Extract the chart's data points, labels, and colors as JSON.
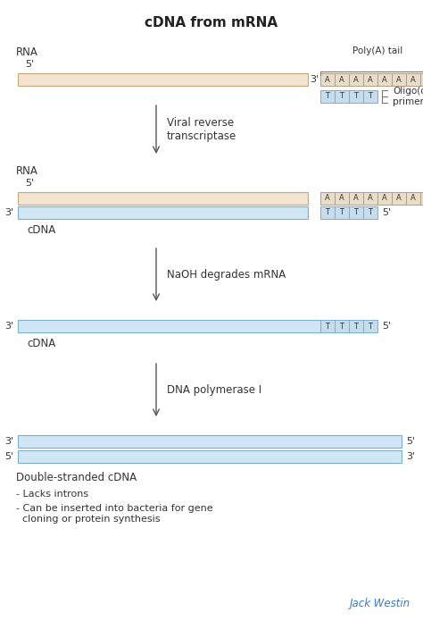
{
  "title": "cDNA from mRNA",
  "title_fontsize": 11,
  "background_color": "#ffffff",
  "rna_color": "#f2e4d0",
  "cdna_color": "#d0e6f5",
  "a_box_color": "#e8ddc8",
  "t_box_color": "#c5dded",
  "text_color": "#333333",
  "jack_westin_color": "#3a7abf",
  "step1_label": "Viral reverse\ntranscriptase",
  "step2_label": "NaOH degrades mRNA",
  "step3_label": "DNA polymerase I",
  "poly_a_label": "Poly(A) tail",
  "oligo_label": "Oligo(dT)\nprimer",
  "double_stranded_label": "Double-stranded cDNA",
  "bullet1": "- Lacks introns",
  "bullet2": "- Can be inserted into bacteria for gene\n  cloning or protein synthesis",
  "jack_westin_text": "Jack Westin",
  "a_letters": [
    "A",
    "A",
    "A",
    "A",
    "A",
    "A",
    "A",
    "A"
  ],
  "t_letters": [
    "T",
    "T",
    "T",
    "T"
  ]
}
